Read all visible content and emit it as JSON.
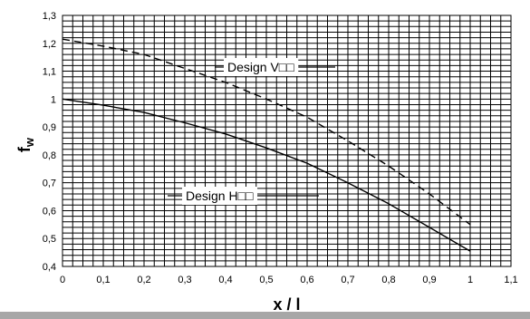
{
  "chart_data": {
    "type": "line",
    "xlabel": "x / l",
    "ylabel": "f",
    "ylabel_sub": "w",
    "xlim": [
      0,
      1.1
    ],
    "ylim": [
      0.4,
      1.3
    ],
    "x_ticks": [
      "0",
      "0,1",
      "0,2",
      "0,3",
      "0,4",
      "0,5",
      "0,6",
      "0,7",
      "0,8",
      "0,9",
      "1",
      "1,1"
    ],
    "y_ticks": [
      "0,4",
      "0,5",
      "0,6",
      "0,7",
      "0,8",
      "0,9",
      "1",
      "1,1",
      "1,2",
      "1,3"
    ],
    "grid": true,
    "series": [
      {
        "name": "Design V□□",
        "line_style": "dashed",
        "x": [
          0,
          0.1,
          0.2,
          0.3,
          0.4,
          0.5,
          0.6,
          0.7,
          0.8,
          0.9,
          1.0
        ],
        "y": [
          1.215,
          1.19,
          1.16,
          1.11,
          1.06,
          1.0,
          0.935,
          0.85,
          0.76,
          0.66,
          0.55
        ]
      },
      {
        "name": "Design H□□",
        "line_style": "solid",
        "x": [
          0,
          0.1,
          0.2,
          0.3,
          0.4,
          0.5,
          0.6,
          0.7,
          0.8,
          0.9,
          1.0
        ],
        "y": [
          1.0,
          0.978,
          0.952,
          0.915,
          0.875,
          0.825,
          0.77,
          0.7,
          0.625,
          0.54,
          0.455
        ]
      }
    ],
    "annotations": [
      {
        "text": "Design V□□",
        "series": 0
      },
      {
        "text": "Design H□□",
        "series": 1
      }
    ]
  }
}
